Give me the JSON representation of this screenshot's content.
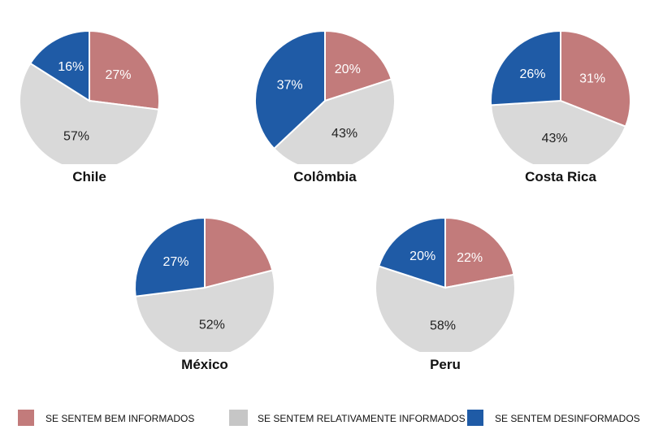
{
  "chart_data": {
    "type": "pie",
    "categories": [
      "SE SENTEM BEM INFORMADOS",
      "SE SENTEM RELATIVAMENTE INFORMADOS",
      "SE SENTEM DESINFORMADOS"
    ],
    "colors": [
      "#c27b7b",
      "#d9d9d9",
      "#1f5ba6"
    ],
    "legend_colors": [
      "#c27b7b",
      "#c6c6c6",
      "#1f5ba6"
    ],
    "legend_placement": "bottom",
    "pies": [
      {
        "title": "Chile",
        "values": [
          27,
          57,
          16
        ],
        "labels": [
          "27%",
          "57%",
          "16%"
        ]
      },
      {
        "title": "Colômbia",
        "values": [
          20,
          43,
          37
        ],
        "labels": [
          "20%",
          "43%",
          "37%"
        ]
      },
      {
        "title": "Costa Rica",
        "values": [
          31,
          43,
          26
        ],
        "labels": [
          "31%",
          "43%",
          "26%"
        ]
      },
      {
        "title": "México",
        "values": [
          21,
          52,
          27
        ],
        "labels": [
          "",
          "52%",
          "27%"
        ]
      },
      {
        "title": "Peru",
        "values": [
          22,
          58,
          20
        ],
        "labels": [
          "22%",
          "58%",
          "20%"
        ]
      }
    ]
  }
}
